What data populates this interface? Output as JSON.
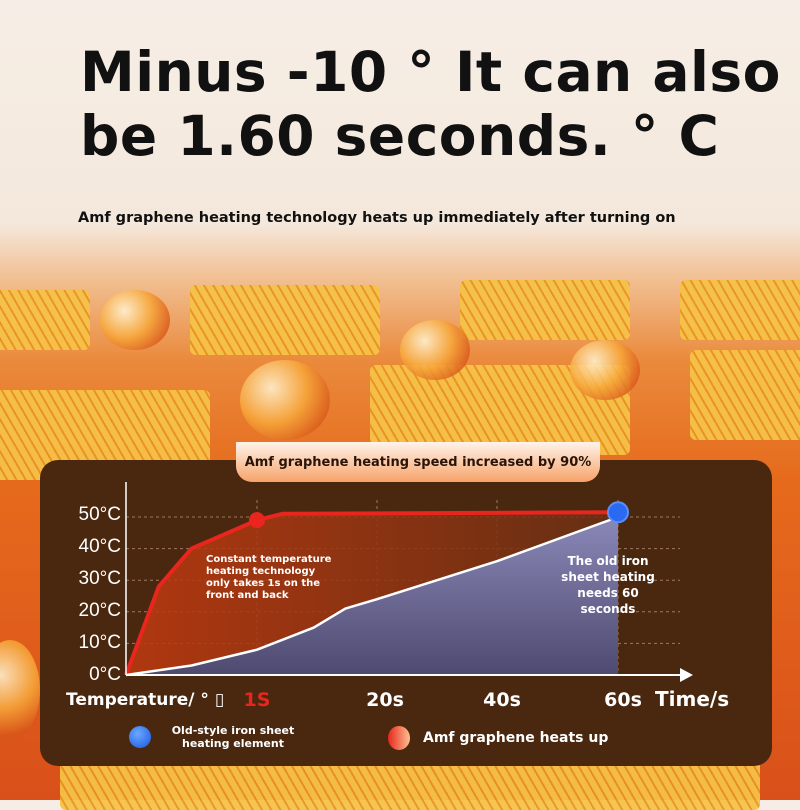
{
  "headline": "Minus -10 ° It can also be 1.60 seconds. ° C",
  "subtitle": "Amf graphene heating technology heats up immediately after turning on",
  "badge": "Amf graphene heating speed increased by 90%",
  "chart_data": {
    "type": "line",
    "xlabel": "Time/s",
    "ylabel": "Temperature/ ° ▯",
    "x_ticks": [
      "1S",
      "20s",
      "40s",
      "60s"
    ],
    "y_ticks": [
      "50°C",
      "40°C",
      "30°C",
      "20°C",
      "10°C",
      "0°C"
    ],
    "ylim": [
      0,
      50
    ],
    "grid": true,
    "series": [
      {
        "name": "Amf graphene heats up",
        "color": "#e8261e",
        "points": [
          [
            0,
            0
          ],
          [
            0.25,
            28
          ],
          [
            0.5,
            40
          ],
          [
            1,
            49
          ],
          [
            5,
            51
          ],
          [
            60,
            51.5
          ]
        ]
      },
      {
        "name": "Old-style iron sheet heating element",
        "color": "#ffffff",
        "points": [
          [
            0,
            0
          ],
          [
            0.5,
            3
          ],
          [
            1,
            8
          ],
          [
            10,
            15
          ],
          [
            15,
            21
          ],
          [
            20,
            24
          ],
          [
            40,
            36
          ],
          [
            60,
            50
          ]
        ]
      }
    ],
    "annotations": [
      "Constant temperature heating technology only takes 1s on the front and back",
      "The old iron sheet heating needs 60 seconds"
    ],
    "legend": [
      "Old-style iron sheet heating element",
      "Amf graphene heats up"
    ]
  }
}
